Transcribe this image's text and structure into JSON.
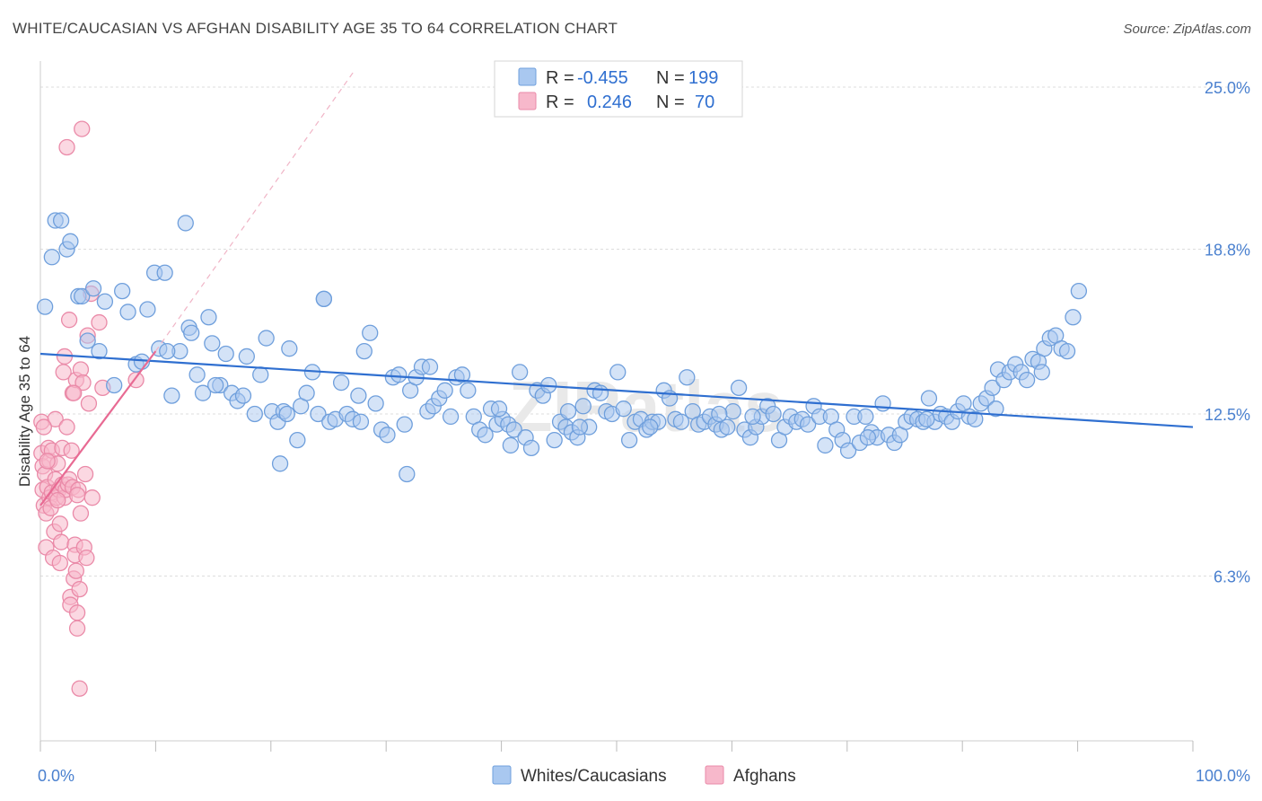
{
  "header": {
    "title": "WHITE/CAUCASIAN VS AFGHAN DISABILITY AGE 35 TO 64 CORRELATION CHART",
    "source": "Source: ZipAtlas.com"
  },
  "legend": {
    "r_label": "R =",
    "n_label": "N =",
    "white": {
      "r": "-0.455",
      "n": "199"
    },
    "afghan": {
      "r": "0.246",
      "n": "70"
    }
  },
  "colors": {
    "white_fill": "#a9c8f0",
    "white_stroke": "#6f9fdc",
    "white_line": "#2f6fd0",
    "afghan_fill": "#f7b8cb",
    "afghan_stroke": "#ea8aa8",
    "afghan_line": "#e86a93",
    "grid": "#dddddd",
    "tick_label": "#4a80cf"
  },
  "chart_data": {
    "type": "scatter",
    "xlabel": "",
    "ylabel": "Disability Age 35 to 64",
    "xlim": [
      0,
      100
    ],
    "ylim": [
      0,
      25
    ],
    "x_tick_labels": [
      "0.0%",
      "100.0%"
    ],
    "y_ticks": [
      6.3,
      12.5,
      18.8,
      25.0
    ],
    "y_tick_labels": [
      "6.3%",
      "12.5%",
      "18.8%",
      "25.0%"
    ],
    "grid": true,
    "legend_position": "top-center",
    "series": [
      {
        "name": "Whites/Caucasians",
        "trend": {
          "x": [
            0,
            100
          ],
          "y": [
            14.8,
            12.0
          ]
        },
        "points": [
          [
            0.4,
            16.6
          ],
          [
            1.0,
            18.5
          ],
          [
            1.3,
            19.9
          ],
          [
            1.8,
            19.9
          ],
          [
            2.3,
            18.8
          ],
          [
            2.6,
            19.1
          ],
          [
            3.3,
            17.0
          ],
          [
            3.6,
            17.0
          ],
          [
            4.1,
            15.3
          ],
          [
            4.6,
            17.3
          ],
          [
            5.1,
            14.9
          ],
          [
            5.6,
            16.8
          ],
          [
            6.4,
            13.6
          ],
          [
            7.1,
            17.2
          ],
          [
            7.6,
            16.4
          ],
          [
            8.3,
            14.4
          ],
          [
            8.8,
            14.5
          ],
          [
            9.3,
            16.5
          ],
          [
            9.9,
            17.9
          ],
          [
            10.3,
            15.0
          ],
          [
            10.8,
            17.9
          ],
          [
            11.4,
            13.2
          ],
          [
            12.1,
            14.9
          ],
          [
            12.6,
            19.8
          ],
          [
            12.9,
            15.8
          ],
          [
            13.1,
            15.6
          ],
          [
            13.6,
            14.0
          ],
          [
            14.1,
            13.3
          ],
          [
            14.6,
            16.2
          ],
          [
            14.9,
            15.2
          ],
          [
            15.6,
            13.6
          ],
          [
            16.1,
            14.8
          ],
          [
            16.6,
            13.3
          ],
          [
            17.1,
            13.0
          ],
          [
            17.6,
            13.2
          ],
          [
            17.9,
            14.7
          ],
          [
            18.6,
            12.5
          ],
          [
            19.1,
            14.0
          ],
          [
            19.6,
            15.4
          ],
          [
            20.1,
            12.6
          ],
          [
            20.6,
            12.2
          ],
          [
            21.1,
            12.6
          ],
          [
            21.6,
            15.0
          ],
          [
            22.3,
            11.5
          ],
          [
            22.6,
            12.8
          ],
          [
            23.1,
            13.3
          ],
          [
            23.6,
            14.1
          ],
          [
            24.1,
            12.5
          ],
          [
            24.6,
            16.9
          ],
          [
            25.1,
            12.2
          ],
          [
            25.6,
            12.3
          ],
          [
            26.1,
            13.7
          ],
          [
            26.6,
            12.5
          ],
          [
            27.1,
            12.3
          ],
          [
            27.6,
            13.2
          ],
          [
            28.1,
            14.9
          ],
          [
            28.6,
            15.6
          ],
          [
            29.1,
            12.9
          ],
          [
            29.6,
            11.9
          ],
          [
            30.1,
            11.7
          ],
          [
            30.6,
            13.9
          ],
          [
            31.1,
            14.0
          ],
          [
            31.6,
            12.1
          ],
          [
            32.1,
            13.4
          ],
          [
            32.6,
            13.9
          ],
          [
            33.1,
            14.3
          ],
          [
            33.6,
            12.6
          ],
          [
            34.1,
            12.8
          ],
          [
            34.6,
            13.1
          ],
          [
            35.1,
            13.4
          ],
          [
            35.6,
            12.4
          ],
          [
            36.1,
            13.9
          ],
          [
            36.6,
            14.0
          ],
          [
            37.1,
            13.4
          ],
          [
            37.6,
            12.4
          ],
          [
            38.1,
            11.9
          ],
          [
            38.6,
            11.7
          ],
          [
            39.1,
            12.7
          ],
          [
            39.6,
            12.1
          ],
          [
            40.1,
            12.3
          ],
          [
            40.6,
            12.1
          ],
          [
            41.1,
            11.9
          ],
          [
            41.6,
            14.1
          ],
          [
            42.1,
            11.6
          ],
          [
            42.6,
            11.2
          ],
          [
            43.1,
            13.4
          ],
          [
            43.6,
            13.2
          ],
          [
            44.1,
            13.6
          ],
          [
            44.6,
            11.5
          ],
          [
            45.1,
            12.2
          ],
          [
            45.6,
            12.0
          ],
          [
            46.1,
            11.8
          ],
          [
            46.6,
            11.6
          ],
          [
            47.1,
            12.8
          ],
          [
            47.6,
            12.0
          ],
          [
            48.1,
            13.4
          ],
          [
            48.6,
            13.3
          ],
          [
            49.1,
            12.6
          ],
          [
            49.6,
            12.5
          ],
          [
            50.1,
            14.1
          ],
          [
            50.6,
            12.7
          ],
          [
            51.1,
            11.5
          ],
          [
            51.6,
            12.2
          ],
          [
            52.1,
            12.3
          ],
          [
            52.6,
            11.9
          ],
          [
            53.1,
            12.2
          ],
          [
            53.6,
            12.2
          ],
          [
            54.1,
            13.4
          ],
          [
            54.6,
            13.1
          ],
          [
            55.1,
            12.3
          ],
          [
            55.6,
            12.2
          ],
          [
            56.1,
            13.9
          ],
          [
            56.6,
            12.6
          ],
          [
            57.1,
            12.1
          ],
          [
            57.6,
            12.2
          ],
          [
            58.1,
            12.4
          ],
          [
            58.6,
            12.1
          ],
          [
            59.1,
            11.9
          ],
          [
            59.6,
            12.0
          ],
          [
            60.1,
            12.6
          ],
          [
            60.6,
            13.5
          ],
          [
            61.1,
            11.9
          ],
          [
            61.6,
            11.6
          ],
          [
            62.1,
            12.0
          ],
          [
            62.6,
            12.4
          ],
          [
            63.1,
            12.8
          ],
          [
            63.6,
            12.5
          ],
          [
            64.1,
            11.5
          ],
          [
            64.6,
            12.0
          ],
          [
            65.1,
            12.4
          ],
          [
            65.6,
            12.2
          ],
          [
            66.1,
            12.3
          ],
          [
            66.6,
            12.1
          ],
          [
            67.1,
            12.8
          ],
          [
            67.6,
            12.4
          ],
          [
            68.1,
            11.3
          ],
          [
            68.6,
            12.4
          ],
          [
            69.1,
            11.9
          ],
          [
            69.6,
            11.5
          ],
          [
            70.1,
            11.1
          ],
          [
            70.6,
            12.4
          ],
          [
            71.1,
            11.4
          ],
          [
            71.6,
            12.4
          ],
          [
            72.1,
            11.8
          ],
          [
            72.6,
            11.6
          ],
          [
            73.1,
            12.9
          ],
          [
            73.6,
            11.7
          ],
          [
            74.1,
            11.4
          ],
          [
            74.6,
            11.7
          ],
          [
            75.1,
            12.2
          ],
          [
            75.6,
            12.4
          ],
          [
            76.1,
            12.3
          ],
          [
            76.6,
            12.2
          ],
          [
            77.1,
            13.1
          ],
          [
            77.6,
            12.2
          ],
          [
            78.1,
            12.5
          ],
          [
            78.6,
            12.4
          ],
          [
            79.1,
            12.2
          ],
          [
            79.6,
            12.6
          ],
          [
            80.1,
            12.9
          ],
          [
            80.6,
            12.4
          ],
          [
            81.1,
            12.3
          ],
          [
            81.6,
            12.9
          ],
          [
            82.1,
            13.1
          ],
          [
            82.6,
            13.5
          ],
          [
            83.1,
            14.2
          ],
          [
            83.6,
            13.8
          ],
          [
            84.1,
            14.1
          ],
          [
            84.6,
            14.4
          ],
          [
            85.1,
            14.1
          ],
          [
            85.6,
            13.8
          ],
          [
            86.1,
            14.6
          ],
          [
            86.6,
            14.5
          ],
          [
            87.1,
            15.0
          ],
          [
            87.6,
            15.4
          ],
          [
            88.1,
            15.5
          ],
          [
            88.6,
            15.0
          ],
          [
            89.1,
            14.9
          ],
          [
            89.6,
            16.2
          ],
          [
            90.1,
            17.2
          ],
          [
            11.0,
            14.9
          ],
          [
            15.2,
            13.6
          ],
          [
            21.4,
            12.5
          ],
          [
            27.8,
            12.2
          ],
          [
            33.8,
            14.3
          ],
          [
            39.8,
            12.7
          ],
          [
            45.8,
            12.6
          ],
          [
            52.9,
            12.0
          ],
          [
            61.8,
            12.4
          ],
          [
            71.8,
            11.6
          ],
          [
            76.9,
            12.3
          ],
          [
            82.9,
            12.7
          ],
          [
            86.9,
            14.1
          ],
          [
            24.6,
            16.9
          ],
          [
            20.8,
            10.6
          ],
          [
            31.8,
            10.2
          ],
          [
            40.8,
            11.3
          ],
          [
            46.8,
            12.0
          ],
          [
            58.9,
            12.5
          ]
        ]
      },
      {
        "name": "Afghans",
        "trend": {
          "x": [
            0,
            10
          ],
          "y": [
            9.0,
            14.9
          ]
        },
        "points": [
          [
            0.1,
            12.2
          ],
          [
            0.1,
            11.0
          ],
          [
            0.2,
            10.5
          ],
          [
            0.2,
            9.6
          ],
          [
            0.3,
            9.0
          ],
          [
            0.4,
            10.2
          ],
          [
            0.5,
            8.7
          ],
          [
            0.5,
            7.4
          ],
          [
            0.6,
            9.7
          ],
          [
            0.7,
            11.2
          ],
          [
            0.8,
            10.7
          ],
          [
            0.8,
            9.3
          ],
          [
            0.9,
            8.9
          ],
          [
            1.0,
            9.5
          ],
          [
            1.0,
            11.1
          ],
          [
            1.1,
            7.0
          ],
          [
            1.2,
            8.0
          ],
          [
            1.3,
            12.3
          ],
          [
            1.3,
            10.0
          ],
          [
            1.4,
            9.3
          ],
          [
            1.5,
            10.6
          ],
          [
            1.6,
            9.6
          ],
          [
            1.7,
            8.3
          ],
          [
            1.7,
            6.8
          ],
          [
            1.8,
            7.6
          ],
          [
            1.9,
            9.8
          ],
          [
            1.9,
            11.2
          ],
          [
            2.0,
            14.1
          ],
          [
            2.1,
            14.7
          ],
          [
            2.1,
            9.3
          ],
          [
            2.2,
            9.6
          ],
          [
            2.3,
            12.0
          ],
          [
            2.4,
            9.8
          ],
          [
            2.5,
            16.1
          ],
          [
            2.5,
            10.0
          ],
          [
            2.6,
            5.5
          ],
          [
            2.6,
            5.2
          ],
          [
            2.7,
            11.1
          ],
          [
            2.8,
            13.3
          ],
          [
            2.8,
            9.7
          ],
          [
            2.9,
            6.2
          ],
          [
            3.0,
            7.5
          ],
          [
            3.0,
            7.1
          ],
          [
            3.1,
            13.8
          ],
          [
            3.1,
            6.5
          ],
          [
            3.2,
            4.3
          ],
          [
            3.2,
            4.9
          ],
          [
            3.3,
            9.6
          ],
          [
            3.4,
            5.8
          ],
          [
            3.4,
            2.0
          ],
          [
            3.5,
            14.2
          ],
          [
            3.5,
            8.7
          ],
          [
            3.6,
            23.4
          ],
          [
            3.7,
            13.7
          ],
          [
            3.8,
            7.4
          ],
          [
            3.9,
            10.2
          ],
          [
            4.0,
            7.0
          ],
          [
            4.1,
            15.5
          ],
          [
            4.2,
            12.9
          ],
          [
            4.4,
            17.1
          ],
          [
            4.5,
            9.3
          ],
          [
            5.1,
            16.0
          ],
          [
            5.4,
            13.5
          ],
          [
            8.3,
            13.8
          ],
          [
            0.3,
            12.0
          ],
          [
            2.3,
            22.7
          ],
          [
            2.9,
            13.3
          ],
          [
            0.6,
            10.7
          ],
          [
            1.5,
            9.2
          ],
          [
            3.2,
            9.4
          ]
        ]
      }
    ]
  },
  "bottom_legend": {
    "white_label": "Whites/Caucasians",
    "afghan_label": "Afghans"
  },
  "watermark": "ZIPatlas"
}
